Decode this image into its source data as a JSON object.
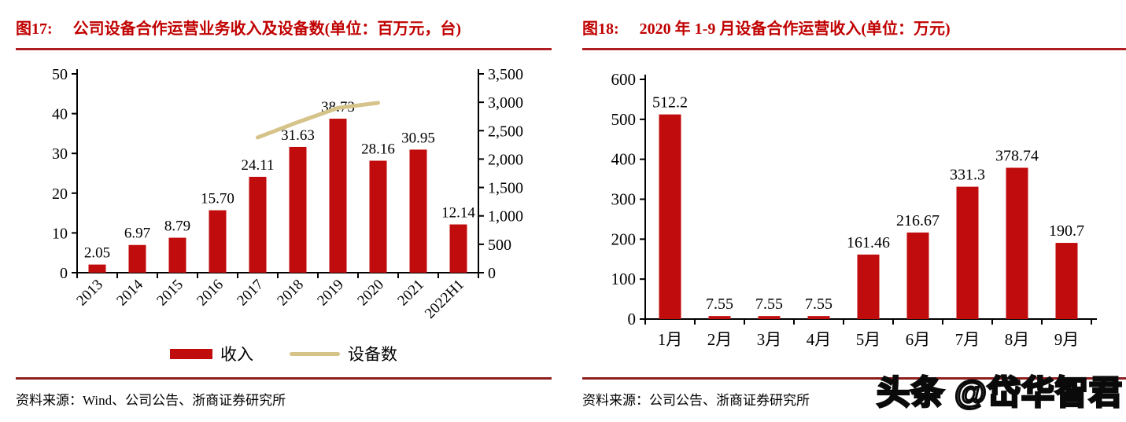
{
  "colors": {
    "title_red": "#c00000",
    "rule_top": "#b01e23",
    "rule_bottom": "#8e1f1f",
    "bar": "#c00c0c",
    "line": "#d6c38a"
  },
  "watermark": "头条 @岱华智君",
  "panels": [
    {
      "fig_label": "图17:",
      "title": "公司设备合作运营业务收入及设备数(单位：百万元，台)",
      "source_label": "资料来源：",
      "source": "Wind、公司公告、浙商证券研究所",
      "legend": [
        {
          "label": "收入",
          "marker": "bar"
        },
        {
          "label": "设备数",
          "marker": "line"
        }
      ]
    },
    {
      "fig_label": "图18:",
      "title": "2020 年 1-9 月设备合作运营收入(单位：万元)",
      "source_label": "资料来源：",
      "source": "公司公告、浙商证券研究所"
    }
  ],
  "chart_data": [
    {
      "id": "fig17",
      "type": "bar",
      "title": "公司设备合作运营业务收入及设备数(单位：百万元，台)",
      "categories": [
        "2013",
        "2014",
        "2015",
        "2016",
        "2017",
        "2018",
        "2019",
        "2020",
        "2021",
        "2022H1"
      ],
      "series": [
        {
          "name": "收入",
          "type": "bar",
          "axis": "left",
          "values": [
            2.05,
            6.97,
            8.79,
            15.7,
            24.11,
            31.63,
            38.73,
            28.16,
            30.95,
            12.14
          ],
          "labels": [
            "2.05",
            "6.97",
            "8.79",
            "15.70",
            "24.11",
            "31.63",
            "38.73",
            "28.16",
            "30.95",
            "12.14"
          ]
        },
        {
          "name": "设备数",
          "type": "line",
          "axis": "right",
          "values": [
            null,
            null,
            null,
            null,
            2380,
            2650,
            2900,
            2990,
            null,
            null
          ]
        }
      ],
      "left_axis": {
        "min": 0,
        "max": 50,
        "ticks": [
          "0",
          "10",
          "20",
          "30",
          "40",
          "50"
        ]
      },
      "right_axis": {
        "min": 0,
        "max": 3500,
        "ticks": [
          "0",
          "500",
          "1,000",
          "1,500",
          "2,000",
          "2,500",
          "3,000",
          "3,500"
        ]
      },
      "x_label_rotation": -45,
      "grid": false,
      "legend_position": "bottom"
    },
    {
      "id": "fig18",
      "type": "bar",
      "title": "2020 年 1-9 月设备合作运营收入(单位：万元)",
      "categories": [
        "1月",
        "2月",
        "3月",
        "4月",
        "5月",
        "6月",
        "7月",
        "8月",
        "9月"
      ],
      "series": [
        {
          "name": "收入",
          "type": "bar",
          "axis": "left",
          "values": [
            512.2,
            7.55,
            7.55,
            7.55,
            161.46,
            216.67,
            331.3,
            378.74,
            190.7
          ],
          "labels": [
            "512.2",
            "7.55",
            "7.55",
            "7.55",
            "161.46",
            "216.67",
            "331.3",
            "378.74",
            "190.7"
          ]
        }
      ],
      "left_axis": {
        "min": 0,
        "max": 600,
        "ticks": [
          "0",
          "100",
          "200",
          "300",
          "400",
          "500",
          "600"
        ]
      },
      "x_label_rotation": 0,
      "grid": false,
      "legend_position": "none"
    }
  ]
}
